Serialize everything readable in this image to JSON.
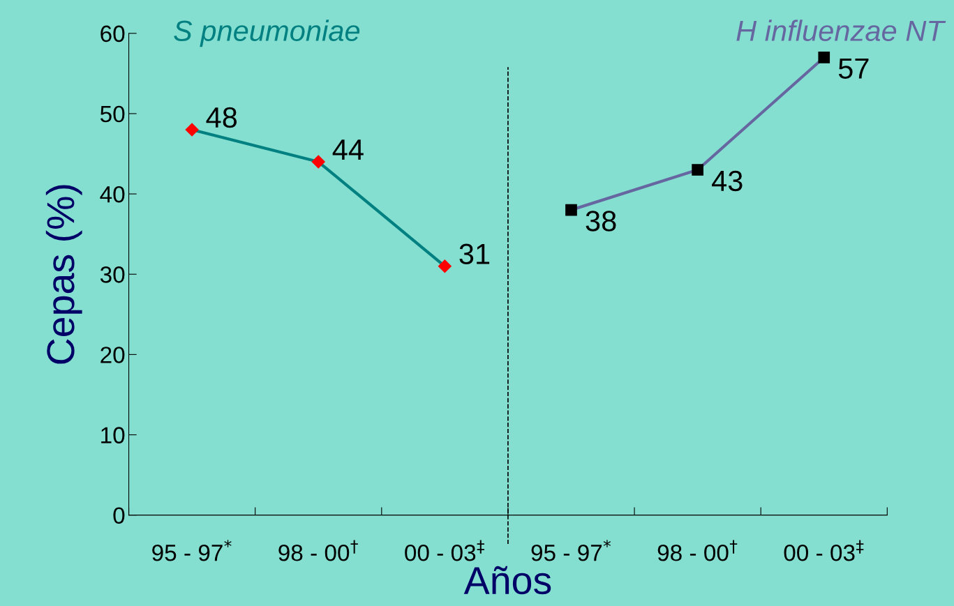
{
  "chart_data": {
    "type": "line",
    "xlabel": "Años",
    "ylabel": "Cepas (%)",
    "categories": [
      "95 - 97$^{*}$",
      "98 - 00$^{†}$",
      "00 - 03$^{‡}$",
      "95 - 97$^{*}$",
      "98 - 00$^{†}$",
      "00 - 03$^{‡}$"
    ],
    "series": [
      {
        "name": "S pneumoniae",
        "color": "#008080",
        "colors": [
          "#ff0000",
          "#ff0000",
          "#ff0000",
          null,
          null,
          null
        ],
        "marker": "diamond",
        "values": [
          48,
          44,
          31,
          null,
          null,
          null
        ]
      },
      {
        "name": "H influenzae NT",
        "color": "#6666a0",
        "colors": [
          null,
          null,
          null,
          "#000000",
          "#000000",
          "#000000"
        ],
        "marker": "square",
        "values": [
          null,
          null,
          null,
          38,
          43,
          57
        ]
      }
    ],
    "ylim": [
      0,
      60
    ],
    "yticks": [
      0,
      10,
      20,
      30,
      40,
      50,
      60
    ],
    "data_labels": true,
    "grid": false,
    "legend": false
  }
}
